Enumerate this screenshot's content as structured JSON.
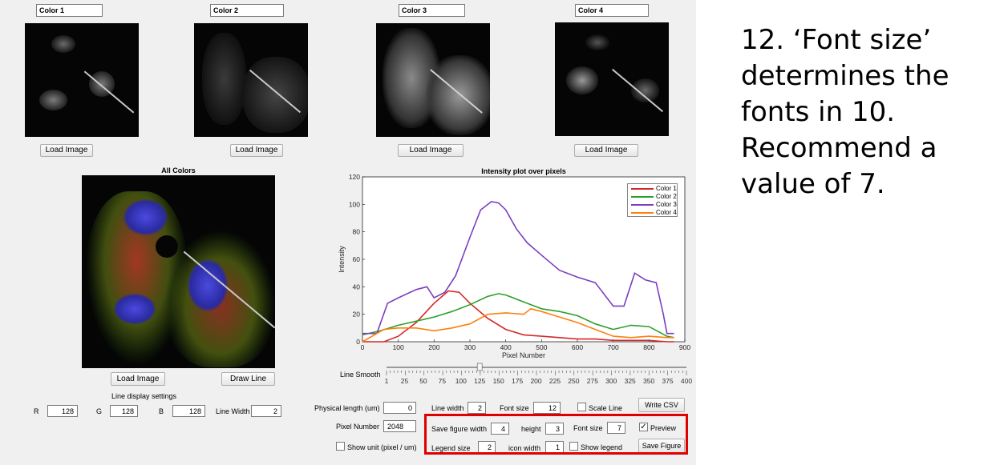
{
  "channels": [
    {
      "title": "Color 1",
      "load_label": "Load Image"
    },
    {
      "title": "Color 2",
      "load_label": "Load Image"
    },
    {
      "title": "Color 3",
      "load_label": "Load Image"
    },
    {
      "title": "Color 4",
      "load_label": "Load Image"
    }
  ],
  "merge": {
    "title": "All Colors",
    "load_label": "Load Image",
    "draw_label": "Draw Line"
  },
  "line_display": {
    "heading": "Line display settings",
    "r_label": "R",
    "r_value": "128",
    "g_label": "G",
    "g_value": "128",
    "b_label": "B",
    "b_value": "128",
    "width_label": "Line Width",
    "width_value": "2"
  },
  "smooth": {
    "label": "Line Smooth",
    "ticks": [
      "1",
      "25",
      "50",
      "75",
      "100",
      "125",
      "150",
      "175",
      "200",
      "225",
      "250",
      "275",
      "300",
      "325",
      "350",
      "375",
      "400"
    ],
    "value": 125
  },
  "controls": {
    "physical_length_label": "Physical length (um)",
    "physical_length_value": "0",
    "line_width_label": "Line width",
    "line_width_value": "2",
    "font_size_label": "Font size",
    "font_size_value": "12",
    "scale_line_label": "Scale Line",
    "scale_line_checked": false,
    "write_csv_label": "Write CSV",
    "pixel_number_label": "Pixel Number",
    "pixel_number_value": "2048",
    "save_width_label": "Save figure width",
    "save_width_value": "4",
    "height_label": "height",
    "height_value": "3",
    "save_font_label": "Font size",
    "save_font_value": "7",
    "preview_label": "Preview",
    "preview_checked": true,
    "show_unit_label": "Show unit (pixel / um)",
    "show_unit_checked": false,
    "legend_size_label": "Legend size",
    "legend_size_value": "2",
    "icon_width_label": "icon width",
    "icon_width_value": "1",
    "show_legend_label": "Show legend",
    "show_legend_checked": false,
    "save_figure_label": "Save Figure"
  },
  "chart_data": {
    "type": "line",
    "title": "Intensity plot over pixels",
    "xlabel": "Pixel Number",
    "ylabel": "Intensity",
    "xlim": [
      0,
      900
    ],
    "ylim": [
      0,
      120
    ],
    "xticks": [
      0,
      100,
      200,
      300,
      400,
      500,
      600,
      700,
      800,
      900
    ],
    "yticks": [
      0,
      20,
      40,
      60,
      80,
      100,
      120
    ],
    "legend_position": "top-right",
    "grid": false,
    "series": [
      {
        "name": "Color 1",
        "color": "#d62728",
        "x": [
          0,
          60,
          100,
          150,
          200,
          240,
          270,
          300,
          350,
          400,
          450,
          500,
          550,
          600,
          650,
          700,
          750,
          800,
          850,
          870
        ],
        "y": [
          0,
          0,
          4,
          14,
          28,
          37,
          36,
          28,
          17,
          9,
          5,
          4,
          3,
          2,
          2,
          1,
          1,
          1,
          0,
          0
        ]
      },
      {
        "name": "Color 2",
        "color": "#2ca02c",
        "x": [
          0,
          50,
          100,
          150,
          200,
          250,
          300,
          350,
          380,
          400,
          450,
          500,
          550,
          600,
          650,
          700,
          750,
          800,
          850,
          870
        ],
        "y": [
          5,
          8,
          12,
          15,
          18,
          22,
          27,
          33,
          35,
          34,
          29,
          24,
          22,
          19,
          13,
          9,
          12,
          11,
          4,
          3
        ]
      },
      {
        "name": "Color 3",
        "color": "#7b3fbf",
        "x": [
          0,
          40,
          70,
          100,
          150,
          180,
          200,
          230,
          260,
          300,
          330,
          360,
          380,
          400,
          430,
          460,
          500,
          550,
          600,
          650,
          700,
          730,
          760,
          790,
          820,
          840,
          850,
          870
        ],
        "y": [
          6,
          6,
          28,
          32,
          38,
          40,
          32,
          36,
          48,
          76,
          96,
          102,
          101,
          96,
          82,
          72,
          63,
          52,
          47,
          43,
          26,
          26,
          50,
          45,
          43,
          20,
          6,
          6
        ]
      },
      {
        "name": "Color 4",
        "color": "#ff7f0e",
        "x": [
          0,
          60,
          100,
          150,
          200,
          250,
          300,
          350,
          400,
          450,
          470,
          500,
          550,
          600,
          650,
          700,
          750,
          800,
          850,
          870
        ],
        "y": [
          0,
          9,
          10,
          10,
          8,
          10,
          13,
          20,
          21,
          20,
          24,
          22,
          18,
          14,
          9,
          4,
          3,
          4,
          3,
          3
        ]
      }
    ]
  },
  "annotation_text": "12. ‘Font size’ determines the fonts in 10. Recommend a value of 7."
}
